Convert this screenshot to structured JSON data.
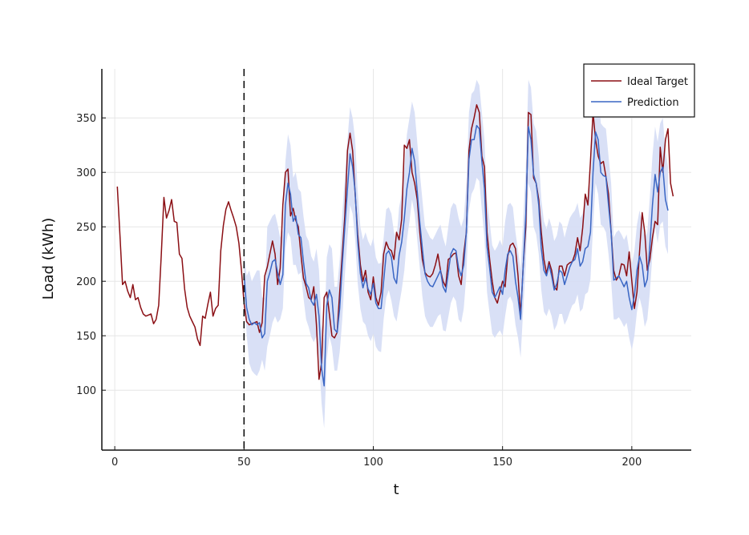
{
  "chart_data": {
    "type": "line",
    "xlabel": "t",
    "ylabel": "Load (kWh)",
    "xlim": [
      -5,
      223
    ],
    "ylim": [
      45,
      395
    ],
    "xticks": [
      0,
      50,
      100,
      150,
      200
    ],
    "yticks": [
      100,
      150,
      200,
      250,
      300,
      350
    ],
    "grid": true,
    "legend_position": "top-right",
    "forecast_start": 50,
    "series": [
      {
        "name": "Ideal Target",
        "color": "#8b0f14",
        "x_start": 1,
        "values": [
          287,
          242,
          197,
          200,
          191,
          185,
          197,
          183,
          185,
          176,
          170,
          168,
          169,
          170,
          161,
          165,
          178,
          224,
          277,
          258,
          265,
          275,
          255,
          254,
          225,
          221,
          193,
          176,
          168,
          163,
          158,
          147,
          141,
          168,
          166,
          179,
          190,
          168,
          175,
          178,
          228,
          251,
          266,
          273,
          265,
          258,
          250,
          235,
          210,
          180,
          163,
          160,
          161,
          162,
          163,
          153,
          162,
          205,
          213,
          225,
          237,
          225,
          197,
          212,
          270,
          300,
          303,
          260,
          267,
          256,
          250,
          225,
          203,
          195,
          185,
          183,
          195,
          160,
          110,
          125,
          185,
          190,
          170,
          150,
          148,
          153,
          190,
          225,
          260,
          320,
          336,
          320,
          280,
          243,
          215,
          200,
          210,
          190,
          183,
          204,
          185,
          178,
          190,
          225,
          236,
          230,
          228,
          220,
          245,
          238,
          257,
          325,
          322,
          330,
          300,
          290,
          275,
          245,
          220,
          208,
          205,
          204,
          207,
          215,
          225,
          210,
          200,
          195,
          220,
          222,
          225,
          226,
          205,
          197,
          225,
          245,
          320,
          340,
          350,
          362,
          355,
          315,
          305,
          245,
          220,
          200,
          185,
          180,
          190,
          200,
          195,
          223,
          233,
          235,
          230,
          205,
          168,
          215,
          250,
          355,
          353,
          295,
          290,
          275,
          245,
          220,
          207,
          218,
          210,
          195,
          192,
          214,
          214,
          205,
          215,
          217,
          218,
          225,
          240,
          228,
          249,
          280,
          270,
          310,
          355,
          330,
          315,
          308,
          310,
          296,
          280,
          245,
          210,
          201,
          205,
          216,
          215,
          205,
          227,
          200,
          175,
          190,
          227,
          263,
          245,
          210,
          220,
          240,
          255,
          252,
          323,
          300,
          330,
          340,
          290,
          278
        ]
      },
      {
        "name": "Prediction",
        "color": "#3a66c4",
        "x_start": 50,
        "values": [
          207,
          176,
          165,
          160,
          162,
          160,
          162,
          148,
          152,
          200,
          208,
          218,
          220,
          208,
          197,
          206,
          270,
          290,
          280,
          255,
          260,
          243,
          240,
          218,
          198,
          194,
          182,
          178,
          188,
          168,
          120,
          104,
          178,
          192,
          185,
          156,
          153,
          175,
          215,
          250,
          285,
          317,
          305,
          282,
          236,
          207,
          194,
          203,
          193,
          188,
          198,
          180,
          175,
          175,
          200,
          225,
          228,
          222,
          203,
          198,
          224,
          236,
          258,
          285,
          300,
          322,
          310,
          282,
          254,
          230,
          207,
          200,
          196,
          195,
          200,
          205,
          210,
          195,
          190,
          208,
          225,
          230,
          228,
          212,
          205,
          215,
          245,
          312,
          330,
          330,
          343,
          340,
          310,
          285,
          232,
          212,
          190,
          185,
          190,
          195,
          188,
          210,
          225,
          228,
          223,
          200,
          185,
          165,
          215,
          262,
          342,
          330,
          298,
          290,
          270,
          230,
          210,
          205,
          215,
          205,
          192,
          198,
          210,
          208,
          197,
          205,
          213,
          218,
          220,
          230,
          214,
          218,
          230,
          232,
          245,
          300,
          337,
          330,
          300,
          297,
          296,
          270,
          245,
          201,
          203,
          205,
          200,
          195,
          200,
          185,
          174,
          187,
          210,
          223,
          215,
          195,
          202,
          233,
          270,
          298,
          282,
          300,
          305,
          275,
          265
        ]
      },
      {
        "name": "",
        "type": "band",
        "color": "#d5ddf5",
        "x_start": 50,
        "lower": [
          195,
          152,
          125,
          118,
          115,
          113,
          118,
          128,
          118,
          140,
          150,
          162,
          168,
          162,
          165,
          175,
          230,
          245,
          240,
          215,
          215,
          206,
          208,
          185,
          165,
          158,
          149,
          144,
          150,
          130,
          88,
          65,
          128,
          150,
          140,
          118,
          118,
          135,
          165,
          205,
          240,
          270,
          262,
          238,
          198,
          175,
          163,
          160,
          150,
          145,
          152,
          140,
          136,
          135,
          165,
          185,
          192,
          182,
          168,
          163,
          178,
          192,
          210,
          238,
          255,
          275,
          262,
          238,
          212,
          186,
          168,
          162,
          158,
          158,
          163,
          168,
          170,
          155,
          154,
          167,
          180,
          186,
          182,
          165,
          162,
          175,
          205,
          265,
          280,
          285,
          295,
          292,
          265,
          240,
          190,
          170,
          152,
          148,
          152,
          155,
          150,
          168,
          183,
          186,
          180,
          160,
          148,
          130,
          175,
          215,
          290,
          282,
          250,
          243,
          225,
          192,
          172,
          168,
          175,
          168,
          155,
          160,
          170,
          170,
          160,
          165,
          172,
          178,
          180,
          188,
          172,
          175,
          188,
          190,
          202,
          250,
          290,
          280,
          252,
          250,
          245,
          225,
          200,
          165,
          165,
          167,
          163,
          158,
          162,
          148,
          137,
          150,
          172,
          185,
          175,
          158,
          165,
          190,
          225,
          250,
          235,
          252,
          255,
          232,
          225
        ],
        "upper": [
          225,
          205,
          210,
          200,
          205,
          210,
          210,
          185,
          185,
          250,
          255,
          260,
          262,
          252,
          240,
          247,
          310,
          335,
          325,
          295,
          300,
          285,
          282,
          260,
          242,
          237,
          223,
          218,
          230,
          210,
          160,
          145,
          222,
          234,
          230,
          195,
          195,
          220,
          262,
          295,
          330,
          360,
          350,
          330,
          282,
          250,
          238,
          245,
          237,
          232,
          240,
          222,
          216,
          217,
          240,
          266,
          268,
          262,
          245,
          238,
          268,
          280,
          305,
          335,
          350,
          365,
          355,
          328,
          300,
          275,
          250,
          245,
          240,
          238,
          243,
          248,
          252,
          240,
          232,
          250,
          267,
          272,
          270,
          258,
          250,
          258,
          290,
          355,
          372,
          375,
          385,
          380,
          355,
          330,
          275,
          255,
          233,
          228,
          232,
          238,
          232,
          255,
          270,
          272,
          268,
          245,
          228,
          210,
          258,
          305,
          385,
          378,
          345,
          338,
          315,
          275,
          255,
          248,
          258,
          250,
          237,
          242,
          255,
          252,
          240,
          250,
          258,
          262,
          265,
          272,
          258,
          262,
          275,
          278,
          290,
          345,
          382,
          378,
          345,
          342,
          340,
          315,
          290,
          240,
          245,
          247,
          243,
          238,
          243,
          228,
          215,
          228,
          252,
          265,
          255,
          240,
          245,
          278,
          315,
          342,
          328,
          345,
          350,
          320,
          305
        ]
      }
    ]
  }
}
